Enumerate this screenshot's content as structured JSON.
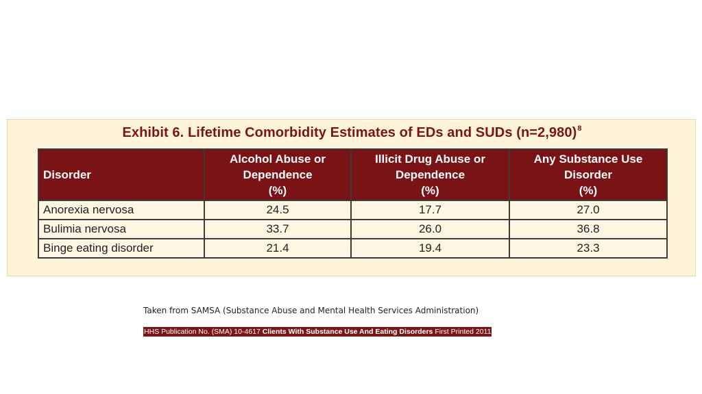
{
  "exhibit": {
    "title": "Exhibit 6. Lifetime Comorbidity Estimates of EDs and SUDs (n=2,980)",
    "footnote": "8",
    "headers": {
      "disorder": "Disorder",
      "alcohol": [
        "Alcohol Abuse or",
        "Dependence",
        "(%)"
      ],
      "illicit": [
        "Illicit Drug Abuse or",
        "Dependence",
        "(%)"
      ],
      "any": [
        "Any Substance Use",
        "Disorder",
        "(%)"
      ]
    },
    "rows": [
      {
        "disorder": "Anorexia nervosa",
        "alcohol": "24.5",
        "illicit": "17.7",
        "any": "27.0"
      },
      {
        "disorder": "Bulimia nervosa",
        "alcohol": "33.7",
        "illicit": "26.0",
        "any": "36.8"
      },
      {
        "disorder": "Binge eating disorder",
        "alcohol": "21.4",
        "illicit": "19.4",
        "any": "23.3"
      }
    ]
  },
  "source": {
    "text": "Taken from SAMSA (Substance Abuse and Mental Health Services Administration)"
  },
  "publication": {
    "prefix": "HHS Publication No. (SMA) 10-4617 ",
    "title": "Clients With Substance Use And Eating Disorders",
    "suffix": " First Printed 2011"
  },
  "colors": {
    "header_bg": "#7a1316",
    "panel_bg": "#fcf3d9",
    "title_color": "#7a1416"
  }
}
